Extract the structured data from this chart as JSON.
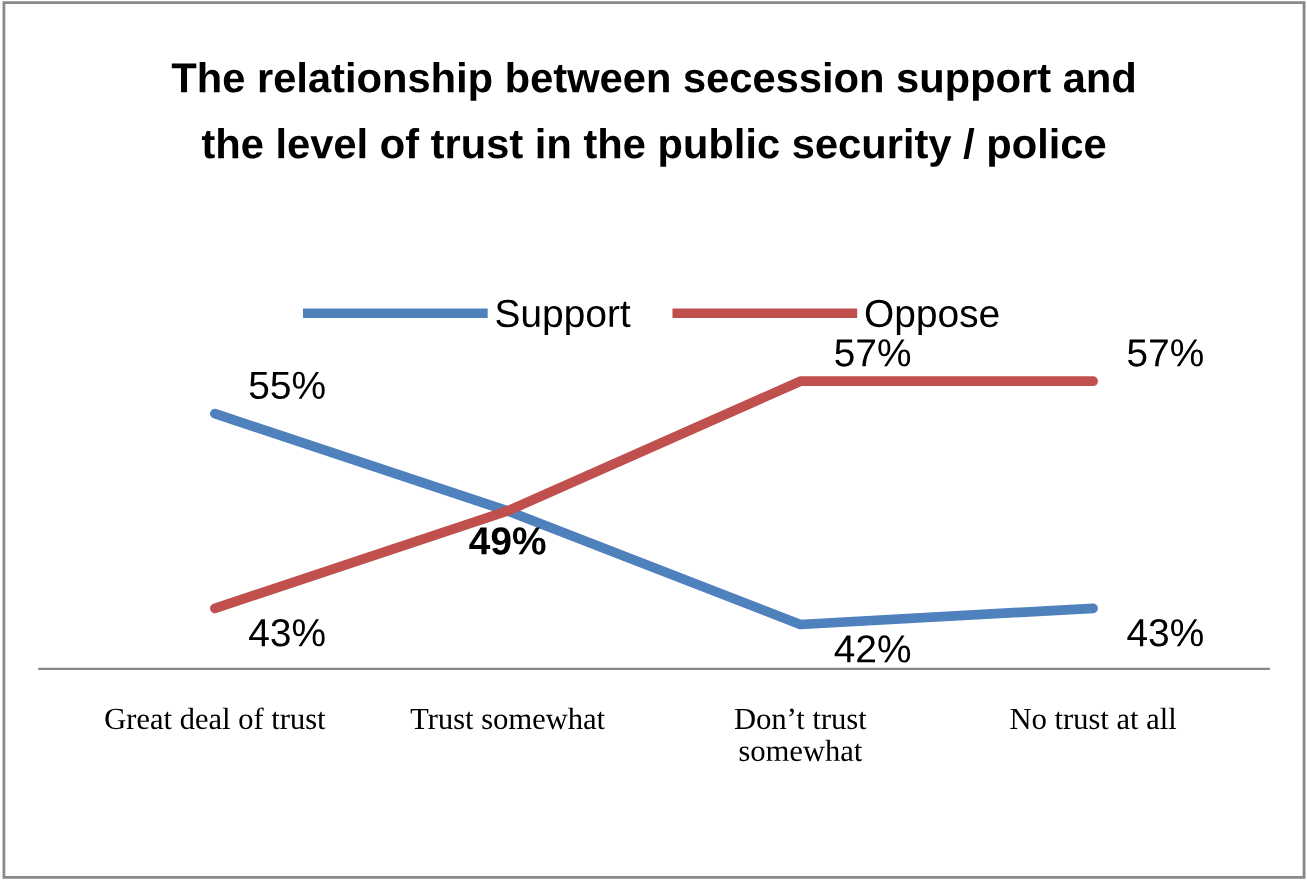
{
  "chart_data": {
    "type": "line",
    "title": "The relationship between secession support and\nthe level of trust in the public security / police",
    "categories": [
      "Great deal of trust",
      "Trust somewhat",
      "Don’t trust\nsomewhat",
      "No trust at all"
    ],
    "series": [
      {
        "name": "Support",
        "color": "#4f81bd",
        "values": [
          55,
          49,
          42,
          43
        ],
        "value_labels": [
          "55%",
          "49%",
          "42%",
          "43%"
        ]
      },
      {
        "name": "Oppose",
        "color": "#c0504d",
        "values": [
          43,
          49,
          57,
          57
        ],
        "value_labels": [
          "43%",
          null,
          "57%",
          "57%"
        ]
      }
    ],
    "legend": "top",
    "marker": "none",
    "line_style": "solid"
  }
}
